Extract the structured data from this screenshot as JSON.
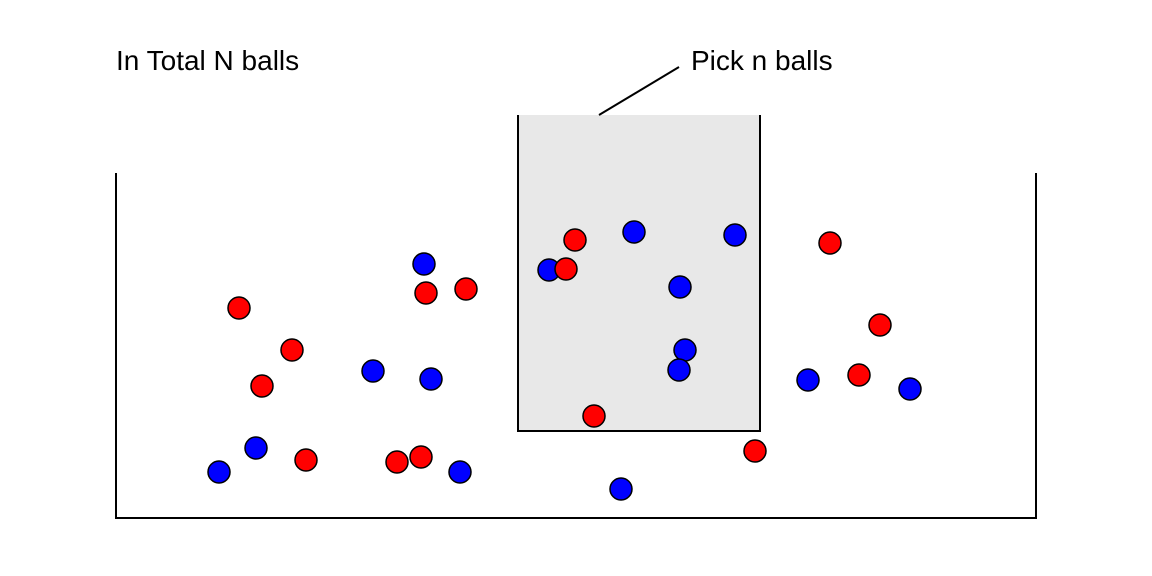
{
  "labels": {
    "total": "In Total N balls",
    "pick": "Pick n balls"
  },
  "colors": {
    "red_ball": "#ff0000",
    "blue_ball": "#0000ff",
    "sample_fill": "#e8e8e8",
    "stroke": "#000000"
  }
}
